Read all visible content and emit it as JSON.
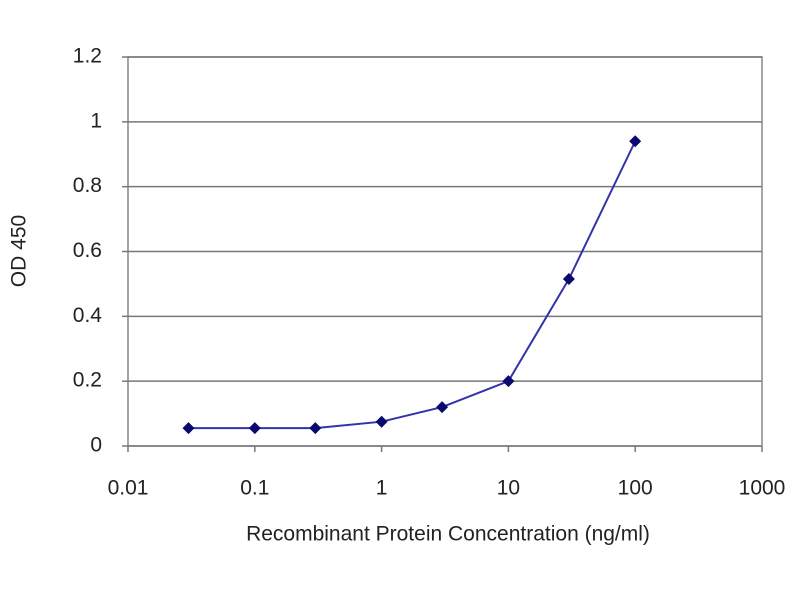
{
  "chart_data": {
    "type": "line",
    "x_label": "Recombinant Protein Concentration (ng/ml)",
    "y_label": "OD 450",
    "x": [
      0.03,
      0.1,
      0.3,
      1,
      3,
      10,
      30,
      100
    ],
    "values": [
      0.055,
      0.055,
      0.055,
      0.075,
      0.12,
      0.2,
      0.515,
      0.94
    ],
    "color": "#3333aa",
    "marker_color": "#0a0a6e",
    "x_log": true,
    "xlim": [
      0.01,
      1000
    ],
    "xticks": [
      0.01,
      0.1,
      1,
      10,
      100,
      1000
    ],
    "ylim": [
      0,
      1.2
    ],
    "yticks": [
      0,
      0.2,
      0.4,
      0.6,
      0.8,
      1,
      1.2
    ],
    "grid": true
  }
}
